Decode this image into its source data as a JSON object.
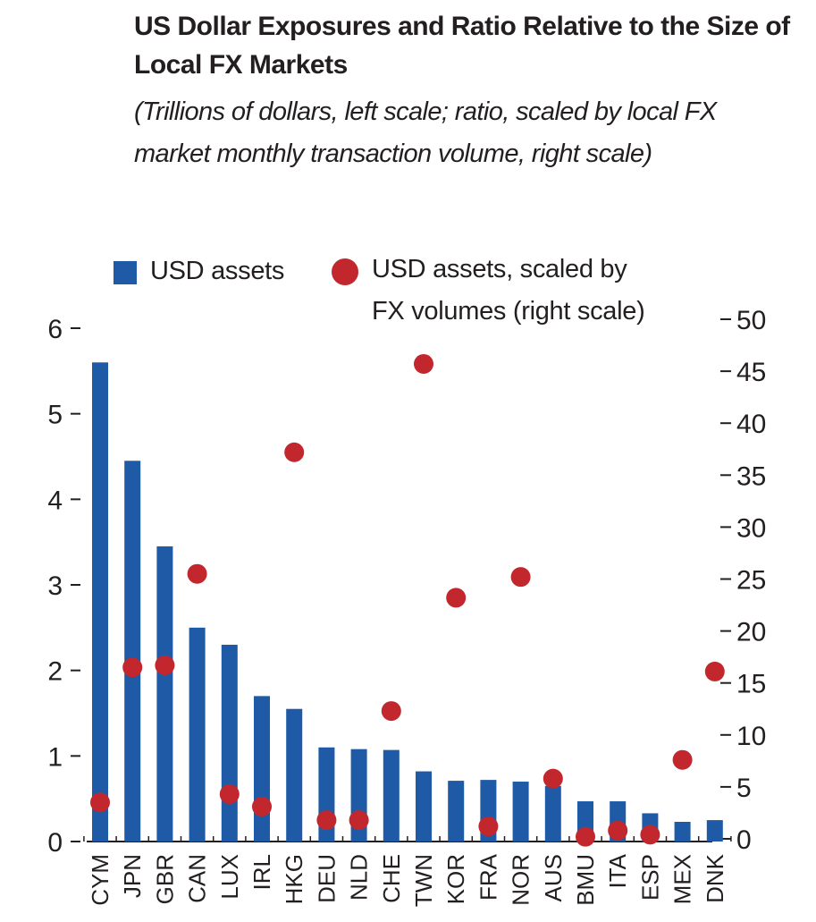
{
  "chart_data": {
    "type": "bar",
    "title": "US Dollar Exposures and Ratio Relative to the Size of Local FX Markets",
    "subtitle": "(Trillions of dollars, left scale; ratio, scaled by local FX market monthly transaction volume, right scale)",
    "categories": [
      "CYM",
      "JPN",
      "GBR",
      "CAN",
      "LUX",
      "IRL",
      "HKG",
      "DEU",
      "NLD",
      "CHE",
      "TWN",
      "KOR",
      "FRA",
      "NOR",
      "AUS",
      "BMU",
      "ITA",
      "ESP",
      "MEX",
      "DNK"
    ],
    "series": [
      {
        "name": "USD assets",
        "type": "bar",
        "axis": "left",
        "color": "#1f5aa6",
        "values": [
          5.6,
          4.45,
          3.45,
          2.5,
          2.3,
          1.7,
          1.55,
          1.1,
          1.08,
          1.07,
          0.82,
          0.71,
          0.72,
          0.7,
          0.65,
          0.47,
          0.47,
          0.33,
          0.23,
          0.25
        ]
      },
      {
        "name": "USD assets, scaled by FX volumes (right scale)",
        "type": "scatter",
        "axis": "right",
        "color": "#c1272d",
        "values": [
          3.5,
          16.5,
          16.7,
          25.5,
          4.3,
          3.1,
          37.2,
          1.8,
          1.8,
          12.3,
          45.7,
          23.2,
          1.2,
          25.2,
          5.8,
          0.2,
          0.8,
          0.4,
          7.6,
          16.1
        ]
      }
    ],
    "ylim_left": [
      0,
      6
    ],
    "yticks_left": [
      "0",
      "1",
      "2",
      "3",
      "4",
      "5",
      "6"
    ],
    "ylim_right": [
      0,
      50
    ],
    "yticks_right": [
      "0",
      "5",
      "10",
      "15",
      "20",
      "25",
      "30",
      "35",
      "40",
      "45",
      "50"
    ],
    "legend": {
      "bar_label": "USD assets",
      "dot_label_line1": "USD assets, scaled by",
      "dot_label_line2": "FX volumes (right scale)"
    },
    "legend_position": "top",
    "grid": false
  }
}
